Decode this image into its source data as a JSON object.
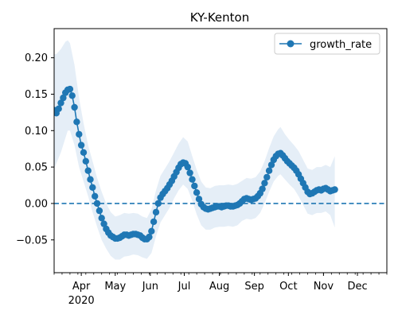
{
  "chart_data": {
    "type": "line",
    "title": "KY-Kenton",
    "xlabel": "",
    "ylabel": "",
    "x_start": "2020-03-08",
    "x_end": "2020-12-27",
    "xlim": [
      "2020-03-08",
      "2020-12-27"
    ],
    "ylim": [
      -0.095,
      0.24
    ],
    "y_ticks": [
      -0.05,
      0.0,
      0.05,
      0.1,
      0.15,
      0.2
    ],
    "y_tick_labels": [
      "−0.05",
      "0.00",
      "0.05",
      "0.10",
      "0.15",
      "0.20"
    ],
    "x_ticks": [
      {
        "date": "2020-04-01",
        "label": "Apr",
        "sublabel": "2020"
      },
      {
        "date": "2020-05-01",
        "label": "May",
        "sublabel": ""
      },
      {
        "date": "2020-06-01",
        "label": "Jun",
        "sublabel": ""
      },
      {
        "date": "2020-07-01",
        "label": "Jul",
        "sublabel": ""
      },
      {
        "date": "2020-08-01",
        "label": "Aug",
        "sublabel": ""
      },
      {
        "date": "2020-09-01",
        "label": "Sep",
        "sublabel": ""
      },
      {
        "date": "2020-10-01",
        "label": "Oct",
        "sublabel": ""
      },
      {
        "date": "2020-11-01",
        "label": "Nov",
        "sublabel": ""
      },
      {
        "date": "2020-12-01",
        "label": "Dec",
        "sublabel": ""
      }
    ],
    "legend_position": "upper right",
    "grid": false,
    "reference_line": {
      "y": 0.0,
      "style": "dashed",
      "color": "#1f77b4"
    },
    "colors": {
      "series": "#1f77b4",
      "band": "#dce8f4"
    },
    "series": [
      {
        "name": "growth_rate",
        "marker": "circle",
        "points": [
          [
            "2020-03-08",
            0.128
          ],
          [
            "2020-03-10",
            0.124
          ],
          [
            "2020-03-12",
            0.13
          ],
          [
            "2020-03-14",
            0.138
          ],
          [
            "2020-03-16",
            0.145
          ],
          [
            "2020-03-18",
            0.152
          ],
          [
            "2020-03-20",
            0.156
          ],
          [
            "2020-03-22",
            0.157
          ],
          [
            "2020-03-24",
            0.148
          ],
          [
            "2020-03-26",
            0.132
          ],
          [
            "2020-03-28",
            0.112
          ],
          [
            "2020-03-30",
            0.095
          ],
          [
            "2020-04-01",
            0.08
          ],
          [
            "2020-04-03",
            0.07
          ],
          [
            "2020-04-05",
            0.058
          ],
          [
            "2020-04-07",
            0.045
          ],
          [
            "2020-04-09",
            0.033
          ],
          [
            "2020-04-11",
            0.022
          ],
          [
            "2020-04-13",
            0.01
          ],
          [
            "2020-04-15",
            0.0
          ],
          [
            "2020-04-17",
            -0.01
          ],
          [
            "2020-04-19",
            -0.02
          ],
          [
            "2020-04-21",
            -0.028
          ],
          [
            "2020-04-23",
            -0.035
          ],
          [
            "2020-04-25",
            -0.04
          ],
          [
            "2020-04-27",
            -0.044
          ],
          [
            "2020-04-29",
            -0.046
          ],
          [
            "2020-05-01",
            -0.048
          ],
          [
            "2020-05-03",
            -0.048
          ],
          [
            "2020-05-05",
            -0.047
          ],
          [
            "2020-05-07",
            -0.045
          ],
          [
            "2020-05-09",
            -0.043
          ],
          [
            "2020-05-11",
            -0.043
          ],
          [
            "2020-05-13",
            -0.044
          ],
          [
            "2020-05-15",
            -0.043
          ],
          [
            "2020-05-17",
            -0.042
          ],
          [
            "2020-05-19",
            -0.042
          ],
          [
            "2020-05-21",
            -0.043
          ],
          [
            "2020-05-23",
            -0.044
          ],
          [
            "2020-05-25",
            -0.047
          ],
          [
            "2020-05-27",
            -0.049
          ],
          [
            "2020-05-29",
            -0.049
          ],
          [
            "2020-05-31",
            -0.046
          ],
          [
            "2020-06-02",
            -0.038
          ],
          [
            "2020-06-04",
            -0.025
          ],
          [
            "2020-06-06",
            -0.012
          ],
          [
            "2020-06-08",
            0.0
          ],
          [
            "2020-06-10",
            0.008
          ],
          [
            "2020-06-12",
            0.013
          ],
          [
            "2020-06-14",
            0.017
          ],
          [
            "2020-06-16",
            0.021
          ],
          [
            "2020-06-18",
            0.026
          ],
          [
            "2020-06-20",
            0.031
          ],
          [
            "2020-06-22",
            0.037
          ],
          [
            "2020-06-24",
            0.043
          ],
          [
            "2020-06-26",
            0.049
          ],
          [
            "2020-06-28",
            0.054
          ],
          [
            "2020-06-30",
            0.056
          ],
          [
            "2020-07-02",
            0.055
          ],
          [
            "2020-07-04",
            0.05
          ],
          [
            "2020-07-06",
            0.042
          ],
          [
            "2020-07-08",
            0.033
          ],
          [
            "2020-07-10",
            0.024
          ],
          [
            "2020-07-12",
            0.015
          ],
          [
            "2020-07-14",
            0.006
          ],
          [
            "2020-07-16",
            -0.001
          ],
          [
            "2020-07-18",
            -0.005
          ],
          [
            "2020-07-20",
            -0.007
          ],
          [
            "2020-07-22",
            -0.008
          ],
          [
            "2020-07-24",
            -0.007
          ],
          [
            "2020-07-26",
            -0.006
          ],
          [
            "2020-07-28",
            -0.005
          ],
          [
            "2020-07-30",
            -0.004
          ],
          [
            "2020-08-01",
            -0.004
          ],
          [
            "2020-08-03",
            -0.005
          ],
          [
            "2020-08-05",
            -0.004
          ],
          [
            "2020-08-07",
            -0.003
          ],
          [
            "2020-08-09",
            -0.003
          ],
          [
            "2020-08-11",
            -0.004
          ],
          [
            "2020-08-13",
            -0.004
          ],
          [
            "2020-08-15",
            -0.003
          ],
          [
            "2020-08-17",
            -0.002
          ],
          [
            "2020-08-19",
            0.0
          ],
          [
            "2020-08-21",
            0.003
          ],
          [
            "2020-08-23",
            0.006
          ],
          [
            "2020-08-25",
            0.007
          ],
          [
            "2020-08-27",
            0.006
          ],
          [
            "2020-08-29",
            0.005
          ],
          [
            "2020-08-31",
            0.006
          ],
          [
            "2020-09-02",
            0.007
          ],
          [
            "2020-09-04",
            0.01
          ],
          [
            "2020-09-06",
            0.014
          ],
          [
            "2020-09-08",
            0.02
          ],
          [
            "2020-09-10",
            0.028
          ],
          [
            "2020-09-12",
            0.036
          ],
          [
            "2020-09-14",
            0.045
          ],
          [
            "2020-09-16",
            0.053
          ],
          [
            "2020-09-18",
            0.06
          ],
          [
            "2020-09-20",
            0.065
          ],
          [
            "2020-09-22",
            0.068
          ],
          [
            "2020-09-24",
            0.069
          ],
          [
            "2020-09-26",
            0.066
          ],
          [
            "2020-09-28",
            0.062
          ],
          [
            "2020-09-30",
            0.058
          ],
          [
            "2020-10-02",
            0.055
          ],
          [
            "2020-10-04",
            0.052
          ],
          [
            "2020-10-06",
            0.049
          ],
          [
            "2020-10-08",
            0.045
          ],
          [
            "2020-10-10",
            0.04
          ],
          [
            "2020-10-12",
            0.034
          ],
          [
            "2020-10-14",
            0.028
          ],
          [
            "2020-10-16",
            0.022
          ],
          [
            "2020-10-18",
            0.016
          ],
          [
            "2020-10-20",
            0.013
          ],
          [
            "2020-10-22",
            0.014
          ],
          [
            "2020-10-24",
            0.016
          ],
          [
            "2020-10-26",
            0.018
          ],
          [
            "2020-10-28",
            0.019
          ],
          [
            "2020-10-30",
            0.018
          ],
          [
            "2020-11-01",
            0.02
          ],
          [
            "2020-11-03",
            0.021
          ],
          [
            "2020-11-05",
            0.019
          ],
          [
            "2020-11-07",
            0.017
          ],
          [
            "2020-11-09",
            0.018
          ],
          [
            "2020-11-11",
            0.019
          ]
        ],
        "band": [
          [
            "2020-03-08",
            0.048,
            0.205
          ],
          [
            "2020-03-10",
            0.055,
            0.205
          ],
          [
            "2020-03-14",
            0.07,
            0.212
          ],
          [
            "2020-03-18",
            0.09,
            0.222
          ],
          [
            "2020-03-20",
            0.1,
            0.224
          ],
          [
            "2020-03-22",
            0.1,
            0.22
          ],
          [
            "2020-03-26",
            0.08,
            0.19
          ],
          [
            "2020-03-30",
            0.05,
            0.145
          ],
          [
            "2020-04-03",
            0.03,
            0.11
          ],
          [
            "2020-04-07",
            0.01,
            0.08
          ],
          [
            "2020-04-11",
            -0.012,
            0.058
          ],
          [
            "2020-04-15",
            -0.032,
            0.035
          ],
          [
            "2020-04-19",
            -0.05,
            0.016
          ],
          [
            "2020-04-23",
            -0.062,
            0.0
          ],
          [
            "2020-04-27",
            -0.072,
            -0.012
          ],
          [
            "2020-05-01",
            -0.077,
            -0.018
          ],
          [
            "2020-05-05",
            -0.077,
            -0.016
          ],
          [
            "2020-05-09",
            -0.073,
            -0.013
          ],
          [
            "2020-05-13",
            -0.072,
            -0.014
          ],
          [
            "2020-05-17",
            -0.07,
            -0.013
          ],
          [
            "2020-05-21",
            -0.071,
            -0.014
          ],
          [
            "2020-05-25",
            -0.074,
            -0.018
          ],
          [
            "2020-05-29",
            -0.076,
            -0.02
          ],
          [
            "2020-06-02",
            -0.068,
            -0.008
          ],
          [
            "2020-06-06",
            -0.045,
            0.018
          ],
          [
            "2020-06-10",
            -0.026,
            0.038
          ],
          [
            "2020-06-14",
            -0.016,
            0.048
          ],
          [
            "2020-06-18",
            -0.006,
            0.058
          ],
          [
            "2020-06-22",
            0.007,
            0.07
          ],
          [
            "2020-06-26",
            0.018,
            0.082
          ],
          [
            "2020-06-30",
            0.026,
            0.091
          ],
          [
            "2020-07-04",
            0.02,
            0.085
          ],
          [
            "2020-07-08",
            0.004,
            0.065
          ],
          [
            "2020-07-12",
            -0.015,
            0.046
          ],
          [
            "2020-07-16",
            -0.03,
            0.03
          ],
          [
            "2020-07-20",
            -0.036,
            0.022
          ],
          [
            "2020-07-24",
            -0.036,
            0.021
          ],
          [
            "2020-07-28",
            -0.033,
            0.024
          ],
          [
            "2020-08-01",
            -0.032,
            0.025
          ],
          [
            "2020-08-05",
            -0.032,
            0.025
          ],
          [
            "2020-08-09",
            -0.031,
            0.026
          ],
          [
            "2020-08-13",
            -0.032,
            0.025
          ],
          [
            "2020-08-17",
            -0.03,
            0.027
          ],
          [
            "2020-08-21",
            -0.024,
            0.031
          ],
          [
            "2020-08-25",
            -0.021,
            0.035
          ],
          [
            "2020-08-29",
            -0.022,
            0.034
          ],
          [
            "2020-09-02",
            -0.02,
            0.036
          ],
          [
            "2020-09-06",
            -0.013,
            0.044
          ],
          [
            "2020-09-10",
            0.0,
            0.058
          ],
          [
            "2020-09-14",
            0.016,
            0.076
          ],
          [
            "2020-09-18",
            0.03,
            0.092
          ],
          [
            "2020-09-22",
            0.038,
            0.102
          ],
          [
            "2020-09-24",
            0.04,
            0.105
          ],
          [
            "2020-09-28",
            0.033,
            0.095
          ],
          [
            "2020-10-02",
            0.026,
            0.087
          ],
          [
            "2020-10-06",
            0.02,
            0.08
          ],
          [
            "2020-10-10",
            0.01,
            0.072
          ],
          [
            "2020-10-14",
            -0.002,
            0.06
          ],
          [
            "2020-10-18",
            -0.014,
            0.048
          ],
          [
            "2020-10-22",
            -0.016,
            0.046
          ],
          [
            "2020-10-26",
            -0.013,
            0.05
          ],
          [
            "2020-10-30",
            -0.013,
            0.05
          ],
          [
            "2020-11-03",
            -0.011,
            0.053
          ],
          [
            "2020-11-07",
            -0.016,
            0.05
          ],
          [
            "2020-11-11",
            -0.033,
            0.065
          ]
        ]
      }
    ]
  }
}
